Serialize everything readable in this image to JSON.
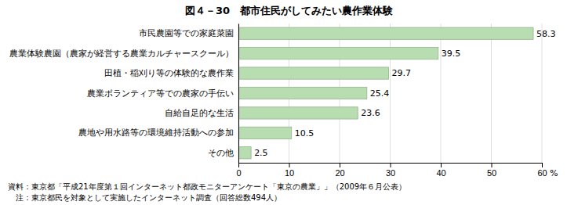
{
  "chart_data": {
    "type": "bar",
    "orientation": "horizontal",
    "title": "図４－30　都市住民がしてみたい農作業体験",
    "categories": [
      "市民農園等での家庭菜園",
      "農業体験農園（農家が経営する農業カルチャースクール）",
      "田植・稲刈り等の体験的な農作業",
      "農業ボランティア等での農家の手伝い",
      "自給自足的な生活",
      "農地や用水路等の環境維持活動への参加",
      "その他"
    ],
    "values": [
      58.3,
      39.5,
      29.7,
      25.4,
      23.6,
      10.5,
      2.5
    ],
    "color": "#b8ddb0",
    "xlim": [
      0,
      60
    ],
    "xticks": [
      0,
      10,
      20,
      30,
      40,
      50,
      60
    ],
    "xlabel": "%",
    "grid": true,
    "data_labels": true,
    "footnotes": [
      "資料：東京都「平成21年度第１回インターネット都政モニターアンケート「東京の農業」」（2009年６月公表）",
      "　注：東京都民を対象として実施したインターネット調査（回答総数494人）"
    ]
  }
}
